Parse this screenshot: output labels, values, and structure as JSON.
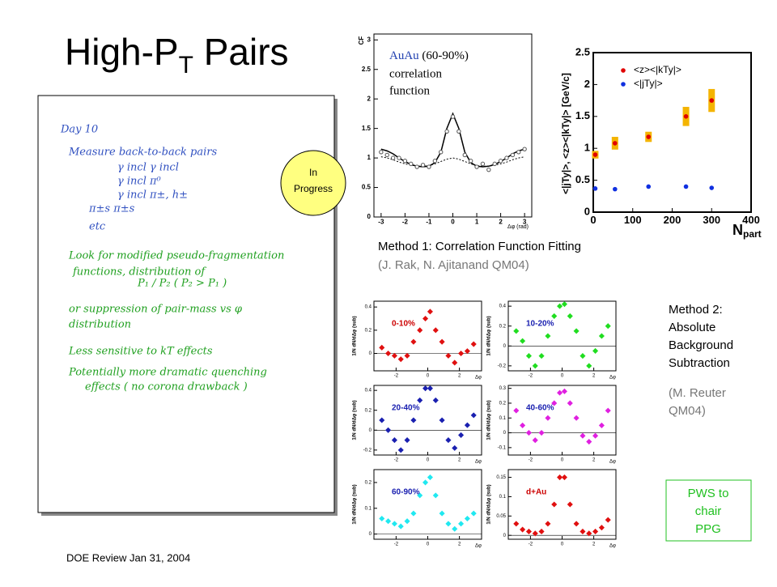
{
  "title": {
    "main": "High-P",
    "sub": "T",
    "rest": " Pairs"
  },
  "notes": [
    {
      "text": "Day 10",
      "color": "#3050c0"
    },
    {
      "text": "Measure   back-to-back pairs",
      "color": "#3050c0"
    },
    {
      "text": "γ incl    γ incl",
      "color": "#3050c0"
    },
    {
      "text": "γ incl    π⁰",
      "color": "#3050c0"
    },
    {
      "text": "γ incl    π±, h±",
      "color": "#3050c0"
    },
    {
      "text": "π±s      π±s",
      "color": "#3050c0"
    },
    {
      "text": "etc",
      "color": "#3050c0"
    },
    {
      "text": "Look  for  modified  pseudo-fragmentation",
      "color": "#20a020"
    },
    {
      "text": "functions, distribution of",
      "color": "#20a020"
    },
    {
      "text": "P₁ / P₂          ( P₂ > P₁ )",
      "color": "#20a020"
    },
    {
      "text": "or suppression of pair-mass vs φ",
      "color": "#20a020"
    },
    {
      "text": "distribution",
      "color": "#20a020"
    },
    {
      "text": "Less  sensitive  to  kT  effects",
      "color": "#20a020"
    },
    {
      "text": "Potentially more dramatic quenching",
      "color": "#20a020"
    },
    {
      "text": "effects  ( no corona drawback )",
      "color": "#20a020"
    }
  ],
  "badge": [
    "In",
    "Progress"
  ],
  "charts": [
    {
      "type": "scatter",
      "ylabel": "CF",
      "xlabel": "Δφ (rad)",
      "annotation": {
        "highlight": "AuAu",
        "rest": " (60-90%)",
        "lines": [
          "correlation",
          "function"
        ]
      },
      "xlim": [
        -3.3,
        3.3
      ],
      "ylim": [
        0,
        3.1
      ],
      "xticks": [
        -3,
        -2,
        -1,
        0,
        1,
        2,
        3
      ],
      "yticks": [
        0,
        0.5,
        1,
        1.5,
        2,
        2.5,
        3
      ],
      "x": [
        -3,
        -2.75,
        -2.5,
        -2.25,
        -2,
        -1.75,
        -1.5,
        -1.25,
        -1,
        -0.75,
        -0.5,
        -0.25,
        0,
        0.25,
        0.5,
        0.75,
        1,
        1.25,
        1.5,
        1.75,
        2,
        2.25,
        2.5,
        2.75,
        3
      ],
      "values": [
        1.1,
        1.05,
        1.0,
        1.0,
        0.95,
        0.9,
        0.85,
        0.88,
        0.85,
        0.95,
        1.1,
        1.45,
        1.7,
        1.45,
        1.05,
        0.95,
        0.85,
        0.9,
        0.8,
        0.9,
        0.95,
        1.0,
        1.05,
        1.1,
        1.15
      ],
      "fit": [
        1.15,
        1.12,
        1.07,
        1.0,
        0.94,
        0.89,
        0.86,
        0.85,
        0.86,
        0.92,
        1.1,
        1.5,
        1.75,
        1.5,
        1.1,
        0.92,
        0.86,
        0.85,
        0.86,
        0.89,
        0.94,
        1.0,
        1.07,
        1.12,
        1.15
      ],
      "background": [
        1.02,
        1.0,
        0.97,
        0.93,
        0.9,
        0.88,
        0.86,
        0.86,
        0.87,
        0.9,
        0.94,
        0.98,
        1.0,
        0.98,
        0.94,
        0.9,
        0.87,
        0.86,
        0.86,
        0.88,
        0.9,
        0.93,
        0.97,
        1.0,
        1.02
      ]
    },
    {
      "type": "scatter",
      "ylabel": "<|jTy|>, <z><|kTy|> [GeV/c]",
      "xlabel": "N",
      "xlabel_sub": "part",
      "xlim": [
        0,
        400
      ],
      "ylim": [
        0,
        2.5
      ],
      "xticks": [
        0,
        100,
        200,
        300,
        400
      ],
      "yticks": [
        0,
        0.5,
        1,
        1.5,
        2,
        2.5
      ],
      "x": [
        5,
        55,
        140,
        235,
        300
      ],
      "series": [
        {
          "name": "<z><|kTy|>",
          "color": "#e00000",
          "values": [
            0.9,
            1.08,
            1.18,
            1.5,
            1.75
          ],
          "sys": [
            0.06,
            0.1,
            0.08,
            0.15,
            0.18
          ],
          "sys_color": "#f4b400"
        },
        {
          "name": "<|jTy|>",
          "color": "#1030e0",
          "values": [
            0.37,
            0.36,
            0.4,
            0.4,
            0.38
          ]
        }
      ]
    }
  ],
  "method1": {
    "title": "Method 1: Correlation Function Fitting",
    "ref": "(J. Rak, N. Ajitanand QM04)"
  },
  "method2": {
    "lines": [
      "Method 2:",
      "Absolute",
      "Background",
      "Subtraction"
    ],
    "ref": [
      "(M. Reuter",
      "QM04)"
    ]
  },
  "panels": {
    "type": "scatter",
    "ylabel": "1/N dN/dΔφ (sub)",
    "xlabel": "Δφ",
    "xlim": [
      -3.4,
      3.4
    ],
    "xticks": [
      -2,
      0,
      2
    ],
    "x": [
      -2.9,
      -2.5,
      -2.1,
      -1.7,
      -1.3,
      -0.9,
      -0.5,
      -0.15,
      0.15,
      0.5,
      0.9,
      1.3,
      1.7,
      2.1,
      2.5,
      2.9
    ],
    "items": [
      {
        "name": "0-10%",
        "color": "#e01010",
        "ylim": [
          -0.15,
          0.45
        ],
        "yticks": [
          0,
          0.2,
          0.4
        ],
        "values": [
          0.05,
          0.0,
          -0.02,
          -0.05,
          -0.02,
          0.1,
          0.2,
          0.3,
          0.36,
          0.2,
          0.1,
          -0.02,
          -0.08,
          0.0,
          0.02,
          0.08
        ]
      },
      {
        "name": "10-20%",
        "color": "#20dd20",
        "ylim": [
          -0.25,
          0.45
        ],
        "yticks": [
          -0.2,
          0,
          0.2,
          0.4
        ],
        "values": [
          0.15,
          0.05,
          -0.1,
          -0.2,
          -0.1,
          0.1,
          0.3,
          0.4,
          0.42,
          0.3,
          0.15,
          -0.1,
          -0.2,
          -0.05,
          0.1,
          0.2
        ]
      },
      {
        "name": "20-40%",
        "color": "#1a20b0",
        "ylim": [
          -0.25,
          0.45
        ],
        "yticks": [
          -0.2,
          0,
          0.2,
          0.4
        ],
        "values": [
          0.1,
          0.0,
          -0.1,
          -0.2,
          -0.1,
          0.1,
          0.3,
          0.42,
          0.42,
          0.3,
          0.1,
          -0.1,
          -0.18,
          -0.05,
          0.05,
          0.15
        ]
      },
      {
        "name": "40-60%",
        "color": "#e020e0",
        "ylim": [
          -0.15,
          0.32
        ],
        "yticks": [
          -0.1,
          0,
          0.1,
          0.2,
          0.3
        ],
        "values": [
          0.15,
          0.05,
          0.0,
          -0.05,
          0.0,
          0.1,
          0.2,
          0.27,
          0.28,
          0.2,
          0.1,
          -0.02,
          -0.06,
          -0.02,
          0.05,
          0.15
        ]
      },
      {
        "name": "60-90%",
        "color": "#20e8f0",
        "ylim": [
          -0.02,
          0.25
        ],
        "yticks": [
          0,
          0.1,
          0.2
        ],
        "values": [
          0.06,
          0.05,
          0.04,
          0.03,
          0.05,
          0.08,
          0.15,
          0.2,
          0.22,
          0.15,
          0.08,
          0.04,
          0.02,
          0.04,
          0.06,
          0.08
        ]
      },
      {
        "name": "d+Au",
        "color": "#e01010",
        "ylim": [
          -0.01,
          0.17
        ],
        "yticks": [
          0,
          0.05,
          0.1,
          0.15
        ],
        "values": [
          0.03,
          0.015,
          0.01,
          0.005,
          0.01,
          0.03,
          0.08,
          0.15,
          0.15,
          0.08,
          0.03,
          0.01,
          0.005,
          0.01,
          0.02,
          0.04
        ]
      }
    ]
  },
  "callout": [
    "PWS to",
    "chair",
    "PPG"
  ],
  "footer": "DOE Review  Jan 31, 2004"
}
